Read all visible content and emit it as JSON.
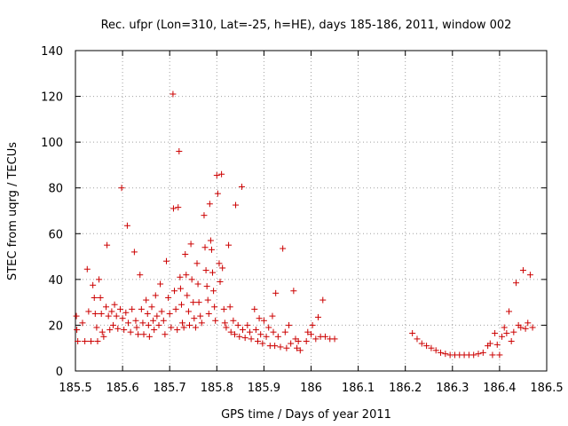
{
  "chart_data": {
    "type": "scatter",
    "title": "Rec. ufpr (Lon=310, Lat=-25, h=HE), days 185-186, 2011, window 002",
    "xlabel": "GPS time / Days of year 2011",
    "ylabel": "STEC from uqrg / TECUs",
    "xlim": [
      185.5,
      186.5
    ],
    "ylim": [
      0,
      140
    ],
    "xticks": [
      185.5,
      185.6,
      185.7,
      185.8,
      185.9,
      186,
      186.1,
      186.2,
      186.3,
      186.4,
      186.5
    ],
    "xtick_labels": [
      "185.5",
      "185.6",
      "185.7",
      "185.8",
      "185.9",
      "186",
      "186.1",
      "186.2",
      "186.3",
      "186.4",
      "186.5"
    ],
    "yticks": [
      0,
      20,
      40,
      60,
      80,
      100,
      120,
      140
    ],
    "ytick_labels": [
      "0",
      "20",
      "40",
      "60",
      "80",
      "100",
      "120",
      "140"
    ],
    "grid": true,
    "marker": "+",
    "color": "#cc0000",
    "series": [
      {
        "name": "STEC",
        "points": [
          [
            185.502,
            24
          ],
          [
            185.503,
            18
          ],
          [
            185.505,
            13
          ],
          [
            185.515,
            21
          ],
          [
            185.52,
            13
          ],
          [
            185.525,
            44.5
          ],
          [
            185.528,
            26
          ],
          [
            185.533,
            13
          ],
          [
            185.537,
            37.5
          ],
          [
            185.54,
            32
          ],
          [
            185.542,
            25
          ],
          [
            185.545,
            19
          ],
          [
            185.547,
            13
          ],
          [
            185.55,
            40
          ],
          [
            185.553,
            32
          ],
          [
            185.555,
            25
          ],
          [
            185.557,
            17
          ],
          [
            185.56,
            15
          ],
          [
            185.565,
            28
          ],
          [
            185.567,
            55
          ],
          [
            185.57,
            24
          ],
          [
            185.573,
            18
          ],
          [
            185.577,
            26
          ],
          [
            185.58,
            20
          ],
          [
            185.583,
            29
          ],
          [
            185.587,
            24
          ],
          [
            185.59,
            18.5
          ],
          [
            185.595,
            27
          ],
          [
            185.598,
            80
          ],
          [
            185.6,
            23
          ],
          [
            185.603,
            18
          ],
          [
            185.607,
            25.5
          ],
          [
            185.61,
            63.5
          ],
          [
            185.612,
            21
          ],
          [
            185.617,
            17
          ],
          [
            185.62,
            27
          ],
          [
            185.625,
            52
          ],
          [
            185.628,
            22
          ],
          [
            185.63,
            19
          ],
          [
            185.633,
            16
          ],
          [
            185.637,
            42
          ],
          [
            185.64,
            27
          ],
          [
            185.643,
            21
          ],
          [
            185.645,
            16
          ],
          [
            185.65,
            31
          ],
          [
            185.653,
            25
          ],
          [
            185.655,
            20
          ],
          [
            185.657,
            15
          ],
          [
            185.662,
            28
          ],
          [
            185.665,
            22
          ],
          [
            185.667,
            18
          ],
          [
            185.67,
            33
          ],
          [
            185.673,
            24
          ],
          [
            185.677,
            20
          ],
          [
            185.68,
            38
          ],
          [
            185.683,
            26
          ],
          [
            185.687,
            22
          ],
          [
            185.69,
            16
          ],
          [
            185.693,
            48
          ],
          [
            185.697,
            32
          ],
          [
            185.7,
            25
          ],
          [
            185.703,
            19
          ],
          [
            185.707,
            121
          ],
          [
            185.708,
            71
          ],
          [
            185.71,
            35
          ],
          [
            185.713,
            27
          ],
          [
            185.716,
            18
          ],
          [
            185.718,
            71.5
          ],
          [
            185.72,
            96
          ],
          [
            185.722,
            41
          ],
          [
            185.723,
            36
          ],
          [
            185.725,
            29
          ],
          [
            185.727,
            21
          ],
          [
            185.73,
            19
          ],
          [
            185.733,
            51
          ],
          [
            185.735,
            42
          ],
          [
            185.737,
            33
          ],
          [
            185.74,
            26
          ],
          [
            185.742,
            20
          ],
          [
            185.745,
            55.5
          ],
          [
            185.747,
            40
          ],
          [
            185.75,
            30
          ],
          [
            185.752,
            23
          ],
          [
            185.755,
            19
          ],
          [
            185.758,
            47
          ],
          [
            185.76,
            38
          ],
          [
            185.762,
            30
          ],
          [
            185.765,
            24
          ],
          [
            185.768,
            21
          ],
          [
            185.773,
            68
          ],
          [
            185.775,
            54
          ],
          [
            185.777,
            44
          ],
          [
            185.779,
            37
          ],
          [
            185.781,
            31
          ],
          [
            185.783,
            25
          ],
          [
            185.785,
            73
          ],
          [
            185.787,
            57
          ],
          [
            185.789,
            53
          ],
          [
            185.791,
            43
          ],
          [
            185.793,
            35
          ],
          [
            185.795,
            28
          ],
          [
            185.797,
            22
          ],
          [
            185.8,
            85.5
          ],
          [
            185.802,
            77.5
          ],
          [
            185.805,
            47
          ],
          [
            185.807,
            39
          ],
          [
            185.81,
            86
          ],
          [
            185.812,
            45
          ],
          [
            185.815,
            27
          ],
          [
            185.817,
            21
          ],
          [
            185.82,
            19
          ],
          [
            185.825,
            55
          ],
          [
            185.828,
            28
          ],
          [
            185.83,
            17
          ],
          [
            185.835,
            22
          ],
          [
            185.838,
            16
          ],
          [
            185.84,
            72.5
          ],
          [
            185.845,
            20
          ],
          [
            185.848,
            15
          ],
          [
            185.853,
            80.5
          ],
          [
            185.855,
            18
          ],
          [
            185.86,
            14.5
          ],
          [
            185.865,
            20
          ],
          [
            185.87,
            17
          ],
          [
            185.873,
            14
          ],
          [
            185.88,
            27
          ],
          [
            185.883,
            18
          ],
          [
            185.887,
            13
          ],
          [
            185.89,
            23
          ],
          [
            185.893,
            16
          ],
          [
            185.897,
            12
          ],
          [
            185.9,
            22
          ],
          [
            185.905,
            15
          ],
          [
            185.91,
            19
          ],
          [
            185.913,
            11
          ],
          [
            185.918,
            24
          ],
          [
            185.92,
            17
          ],
          [
            185.923,
            11
          ],
          [
            185.925,
            34
          ],
          [
            185.93,
            15
          ],
          [
            185.935,
            10.5
          ],
          [
            185.94,
            53.5
          ],
          [
            185.945,
            17
          ],
          [
            185.948,
            10
          ],
          [
            185.953,
            20
          ],
          [
            185.957,
            12
          ],
          [
            185.963,
            35
          ],
          [
            185.967,
            14
          ],
          [
            185.97,
            10
          ],
          [
            185.973,
            13
          ],
          [
            185.977,
            9
          ],
          [
            185.99,
            13
          ],
          [
            185.993,
            17
          ],
          [
            186.0,
            16
          ],
          [
            186.003,
            20
          ],
          [
            186.01,
            14
          ],
          [
            186.015,
            23.5
          ],
          [
            186.02,
            15
          ],
          [
            186.025,
            31
          ],
          [
            186.03,
            15
          ],
          [
            186.04,
            14
          ],
          [
            186.05,
            14
          ],
          [
            186.215,
            16.5
          ],
          [
            186.225,
            14
          ],
          [
            186.235,
            12
          ],
          [
            186.245,
            11
          ],
          [
            186.255,
            10
          ],
          [
            186.265,
            9
          ],
          [
            186.275,
            8
          ],
          [
            186.285,
            7.5
          ],
          [
            186.295,
            7
          ],
          [
            186.305,
            7
          ],
          [
            186.315,
            7
          ],
          [
            186.325,
            7
          ],
          [
            186.335,
            7
          ],
          [
            186.345,
            7
          ],
          [
            186.355,
            7.5
          ],
          [
            186.365,
            8
          ],
          [
            186.375,
            11
          ],
          [
            186.38,
            12
          ],
          [
            186.385,
            7
          ],
          [
            186.39,
            16.5
          ],
          [
            186.395,
            11.5
          ],
          [
            186.4,
            7
          ],
          [
            186.405,
            15
          ],
          [
            186.41,
            19
          ],
          [
            186.415,
            16.5
          ],
          [
            186.42,
            26
          ],
          [
            186.425,
            13
          ],
          [
            186.43,
            17
          ],
          [
            186.435,
            38.5
          ],
          [
            186.44,
            20
          ],
          [
            186.445,
            19
          ],
          [
            186.45,
            44
          ],
          [
            186.455,
            18.5
          ],
          [
            186.46,
            21
          ],
          [
            186.465,
            42
          ],
          [
            186.47,
            19
          ]
        ]
      }
    ]
  }
}
